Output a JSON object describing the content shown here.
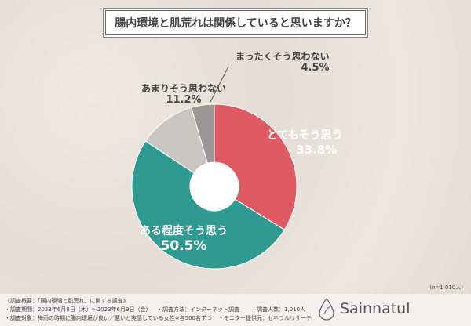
{
  "chart_data": {
    "type": "pie",
    "title": "腸内環境と肌荒れは関係していると思いますか？",
    "categories": [
      "とてもそう思う",
      "ある程度そう思う",
      "あまりそう思わない",
      "まったくそう思わない"
    ],
    "values": [
      33.8,
      50.5,
      11.2,
      4.5
    ],
    "value_labels": [
      "33.8%",
      "50.5%",
      "11.2%",
      "4.5%"
    ],
    "colors": [
      "#e05a63",
      "#2e9a92",
      "#c9c6c2",
      "#9a9794"
    ],
    "donut": true,
    "sample_note": "(n=1,010人)"
  },
  "footer": {
    "line1": "《調査概要：「腸内環境と肌荒れ」に関する調査》",
    "line2a": "・調査期間：2023年6月8日（木）～2023年6月9日（金）",
    "line2b": "・調査方法：インターネット調査",
    "line2c": "・調査人数：1,010人",
    "line3a": "・調査対象：梅雨の時期に腸内環境が良い／悪いと実感している女性※各500名ずつ",
    "line3b": "・モニター提供元：ゼネラルリサーチ",
    "brand": "Sainnatul"
  }
}
